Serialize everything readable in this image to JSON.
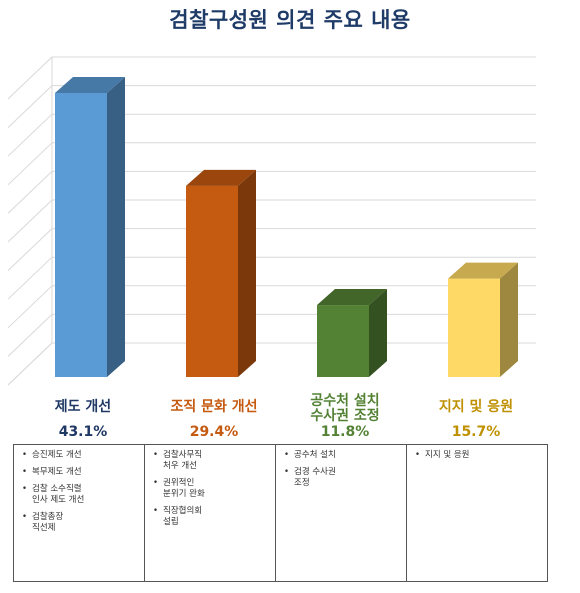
{
  "title": "검찰구성원 의견 주요 내용",
  "chart_data": {
    "type": "bar",
    "title": "검찰구성원 의견 주요 내용",
    "categories": [
      "제도 개선",
      "조직 문화 개선",
      "공수처 설치\n수사권 조정",
      "지지 및 응원"
    ],
    "values": [
      43.1,
      29.4,
      11.8,
      15.7
    ],
    "value_labels": [
      "43.1%",
      "29.4%",
      "11.8%",
      "15.7%"
    ],
    "ylim": [
      0,
      50
    ],
    "grid": true,
    "colors": [
      "#5b9bd5",
      "#c55a11",
      "#548235",
      "#ffd966"
    ],
    "label_colors": [
      "#1f3864",
      "#c55a11",
      "#548235",
      "#bf9000"
    ]
  },
  "notes": [
    [
      "승진제도 개선",
      "복무제도 개선",
      "검찰 소수직렬\n인사 제도 개선",
      "검찰총장\n직선제"
    ],
    [
      "검찰사무직\n처우 개선",
      "권위적인\n분위기 완화",
      "직장협의회\n설립"
    ],
    [
      "공수처 설치",
      "검경 수사권\n조정"
    ],
    [
      "지지 및 응원"
    ]
  ]
}
